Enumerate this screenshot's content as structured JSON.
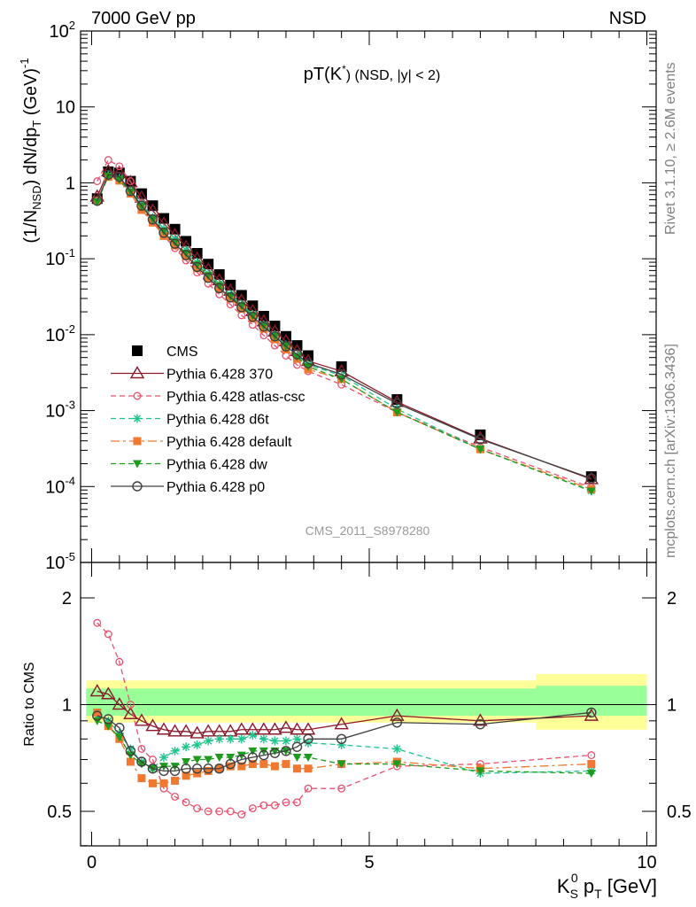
{
  "header": {
    "energy_label": "7000 GeV pp",
    "process_label": "NSD"
  },
  "side": {
    "rivet_label": "Rivet 3.1.10, ≥ 2.6M events",
    "mcplots_label": "mcplots.cern.ch [arXiv:1306.3436]"
  },
  "analysis_label": "CMS_2011_S8978280",
  "chart_data": [
    {
      "type": "line",
      "panel": "main",
      "title_main": "pT(K",
      "title_sup": "*",
      "title_rest": ") (NSD, |y| < 2)",
      "ylabel": "(1/N_NSD) dN/dp_T (GeV)^-1",
      "yscale": "log",
      "ylim": [
        1e-05,
        100
      ],
      "xlim": [
        0,
        10
      ],
      "y_ticks": [
        "10^-5",
        "10^-4",
        "10^-3",
        "10^-2",
        "10^-1",
        "1",
        "10",
        "10^2"
      ],
      "legend_position": "left-center",
      "x": [
        0.1,
        0.3,
        0.5,
        0.7,
        0.9,
        1.1,
        1.3,
        1.5,
        1.7,
        1.9,
        2.1,
        2.3,
        2.5,
        2.7,
        2.9,
        3.1,
        3.3,
        3.5,
        3.7,
        3.9,
        4.5,
        5.5,
        7.0,
        9.0
      ],
      "series": [
        {
          "name": "CMS",
          "color": "#000000",
          "marker": "square-filled",
          "dash": "",
          "values": [
            0.62,
            1.4,
            1.35,
            1.05,
            0.72,
            0.5,
            0.34,
            0.245,
            0.17,
            0.118,
            0.085,
            0.062,
            0.045,
            0.033,
            0.024,
            0.0175,
            0.013,
            0.0095,
            0.0072,
            0.0053,
            0.0038,
            0.0014,
            0.00048,
            0.000135
          ]
        },
        {
          "name": "Pythia 6.428 370",
          "color": "#8b1a2a",
          "marker": "triangle-open",
          "dash": "",
          "values": [
            0.66,
            1.42,
            1.36,
            1.02,
            0.64,
            0.43,
            0.29,
            0.205,
            0.143,
            0.1,
            0.072,
            0.052,
            0.038,
            0.028,
            0.0205,
            0.015,
            0.011,
            0.0082,
            0.0061,
            0.0045,
            0.0033,
            0.0013,
            0.00043,
            0.000125
          ]
        },
        {
          "name": "Pythia 6.428 atlas-csc",
          "color": "#e8506e",
          "marker": "circle-open-small",
          "dash": "6,4",
          "values": [
            1.05,
            2.0,
            1.65,
            1.05,
            0.54,
            0.32,
            0.2,
            0.138,
            0.095,
            0.066,
            0.047,
            0.034,
            0.025,
            0.018,
            0.0135,
            0.0098,
            0.0072,
            0.0053,
            0.004,
            0.0033,
            0.0022,
            0.00095,
            0.00033,
            9.7e-05
          ]
        },
        {
          "name": "Pythia 6.428 d6t",
          "color": "#1fc58a",
          "marker": "star",
          "dash": "6,4",
          "values": [
            0.58,
            1.25,
            1.15,
            0.8,
            0.53,
            0.35,
            0.25,
            0.185,
            0.13,
            0.09,
            0.064,
            0.047,
            0.034,
            0.025,
            0.0185,
            0.0135,
            0.0099,
            0.0073,
            0.0054,
            0.004,
            0.0029,
            0.00105,
            0.00031,
            8.8e-05
          ]
        },
        {
          "name": "Pythia 6.428 default",
          "color": "#f07830",
          "marker": "square-filled-small",
          "dash": "10,4,3,4",
          "values": [
            0.59,
            1.2,
            1.07,
            0.72,
            0.44,
            0.3,
            0.2,
            0.15,
            0.108,
            0.075,
            0.055,
            0.041,
            0.03,
            0.022,
            0.0163,
            0.012,
            0.0087,
            0.0064,
            0.0048,
            0.0035,
            0.0026,
            0.00095,
            0.00031,
            9.2e-05
          ]
        },
        {
          "name": "Pythia 6.428 dw",
          "color": "#1e9a1e",
          "marker": "triangle-down-filled",
          "dash": "6,4",
          "values": [
            0.56,
            1.22,
            1.1,
            0.76,
            0.49,
            0.33,
            0.23,
            0.165,
            0.118,
            0.083,
            0.06,
            0.044,
            0.032,
            0.024,
            0.0177,
            0.013,
            0.0095,
            0.007,
            0.0051,
            0.0038,
            0.0026,
            0.00095,
            0.00031,
            8.7e-05
          ]
        },
        {
          "name": "Pythia 6.428 p0",
          "color": "#404040",
          "marker": "circle-open",
          "dash": "",
          "values": [
            0.58,
            1.28,
            1.2,
            0.78,
            0.5,
            0.33,
            0.22,
            0.158,
            0.112,
            0.078,
            0.056,
            0.041,
            0.031,
            0.023,
            0.0172,
            0.0128,
            0.0095,
            0.007,
            0.0055,
            0.0042,
            0.003,
            0.00124,
            0.00042,
            0.000128
          ]
        }
      ]
    },
    {
      "type": "line",
      "panel": "ratio",
      "ylabel": "Ratio to CMS",
      "xlabel": "K_S^0 p_T [GeV]",
      "xlabel_main": "K",
      "xlabel_sub": "S",
      "xlabel_sup": "0",
      "xlabel_p": " p",
      "xlabel_psub": "T",
      "xlabel_rest": " [GeV]",
      "ylim": [
        0.38,
        2.38
      ],
      "xlim": [
        0,
        10
      ],
      "y_ticks": [
        "0.5",
        "1",
        "2"
      ],
      "x_ticks": [
        "0",
        "5",
        "10"
      ],
      "bands": [
        {
          "x0": -0.1,
          "x1": 8.0,
          "yellow": [
            0.89,
            1.17
          ],
          "green": [
            0.93,
            1.11
          ]
        },
        {
          "x0": 8.0,
          "x1": 10.0,
          "yellow": [
            0.85,
            1.22
          ],
          "green": [
            0.93,
            1.13
          ]
        }
      ],
      "x": [
        0.1,
        0.3,
        0.5,
        0.7,
        0.9,
        1.1,
        1.3,
        1.5,
        1.7,
        1.9,
        2.1,
        2.3,
        2.5,
        2.7,
        2.9,
        3.1,
        3.3,
        3.5,
        3.7,
        3.9,
        4.5,
        5.5,
        7.0,
        9.0
      ],
      "series": [
        {
          "name": "Pythia 6.428 370",
          "color": "#8b1a2a",
          "marker": "triangle-open",
          "dash": "",
          "values": [
            1.09,
            1.07,
            1.0,
            0.94,
            0.9,
            0.87,
            0.85,
            0.84,
            0.84,
            0.83,
            0.84,
            0.84,
            0.84,
            0.85,
            0.85,
            0.85,
            0.85,
            0.86,
            0.85,
            0.85,
            0.88,
            0.93,
            0.9,
            0.93
          ]
        },
        {
          "name": "Pythia 6.428 atlas-csc",
          "color": "#e8506e",
          "marker": "circle-open-small",
          "dash": "6,4",
          "values": [
            1.7,
            1.58,
            1.32,
            1.0,
            0.75,
            0.7,
            0.58,
            0.55,
            0.53,
            0.51,
            0.5,
            0.5,
            0.5,
            0.49,
            0.51,
            0.52,
            0.52,
            0.53,
            0.53,
            0.58,
            0.58,
            0.67,
            0.68,
            0.72
          ]
        },
        {
          "name": "Pythia 6.428 d6t",
          "color": "#1fc58a",
          "marker": "star",
          "dash": "6,4",
          "values": [
            0.93,
            0.9,
            0.83,
            0.75,
            0.69,
            0.66,
            0.71,
            0.74,
            0.76,
            0.77,
            0.79,
            0.8,
            0.8,
            0.8,
            0.82,
            0.8,
            0.79,
            0.79,
            0.8,
            0.78,
            0.77,
            0.75,
            0.64,
            0.65
          ]
        },
        {
          "name": "Pythia 6.428 default",
          "color": "#f07830",
          "marker": "square-filled-small",
          "dash": "10,4,3,4",
          "values": [
            0.95,
            0.87,
            0.8,
            0.69,
            0.62,
            0.6,
            0.6,
            0.61,
            0.63,
            0.64,
            0.65,
            0.66,
            0.67,
            0.67,
            0.68,
            0.68,
            0.67,
            0.68,
            0.66,
            0.66,
            0.68,
            0.69,
            0.66,
            0.68
          ]
        },
        {
          "name": "Pythia 6.428 dw",
          "color": "#1e9a1e",
          "marker": "triangle-down-filled",
          "dash": "6,4",
          "values": [
            0.9,
            0.87,
            0.81,
            0.72,
            0.68,
            0.66,
            0.67,
            0.67,
            0.69,
            0.7,
            0.7,
            0.71,
            0.71,
            0.72,
            0.74,
            0.74,
            0.74,
            0.74,
            0.71,
            0.71,
            0.68,
            0.68,
            0.65,
            0.64
          ]
        },
        {
          "name": "Pythia 6.428 p0",
          "color": "#404040",
          "marker": "circle-open",
          "dash": "",
          "values": [
            0.93,
            0.91,
            0.86,
            0.74,
            0.69,
            0.66,
            0.65,
            0.65,
            0.66,
            0.66,
            0.66,
            0.66,
            0.68,
            0.7,
            0.71,
            0.72,
            0.73,
            0.74,
            0.76,
            0.8,
            0.8,
            0.89,
            0.88,
            0.95
          ]
        }
      ]
    }
  ]
}
